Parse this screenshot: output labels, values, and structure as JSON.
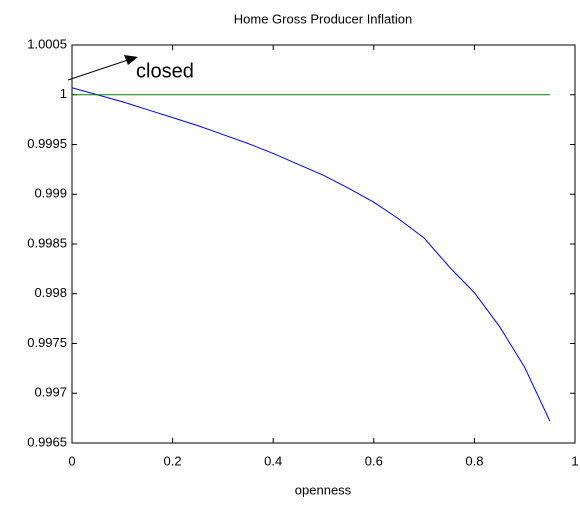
{
  "chart_data": {
    "type": "line",
    "title": "Home Gross Producer Inflation",
    "x_label": "openness",
    "annotation": "closed",
    "x": [
      0,
      0.05,
      0.1,
      0.15,
      0.2,
      0.25,
      0.3,
      0.35,
      0.4,
      0.45,
      0.5,
      0.55,
      0.6,
      0.65,
      0.7,
      0.75,
      0.8,
      0.85,
      0.9,
      0.95
    ],
    "series": [
      {
        "color": "#0000ff",
        "values": [
          1.00007,
          1.0,
          0.99993,
          0.99985,
          0.99977,
          0.99969,
          0.9996,
          0.99951,
          0.99941,
          0.9993,
          0.99919,
          0.99906,
          0.99892,
          0.99875,
          0.99856,
          0.99827,
          0.99801,
          0.99767,
          0.99726,
          0.99672
        ]
      },
      {
        "color": "#008000",
        "values": [
          1,
          1,
          1,
          1,
          1,
          1,
          1,
          1,
          1,
          1,
          1,
          1,
          1,
          1,
          1,
          1,
          1,
          1,
          1,
          1
        ]
      }
    ],
    "xlim": [
      0,
      1
    ],
    "xticks": [
      0,
      0.2,
      0.4,
      0.6,
      0.8,
      1
    ],
    "ylim": [
      0.9965,
      1.0005
    ],
    "yticks": [
      0.9965,
      0.997,
      0.9975,
      0.998,
      0.9985,
      0.999,
      0.9995,
      1,
      1.0005
    ],
    "grid": false
  }
}
